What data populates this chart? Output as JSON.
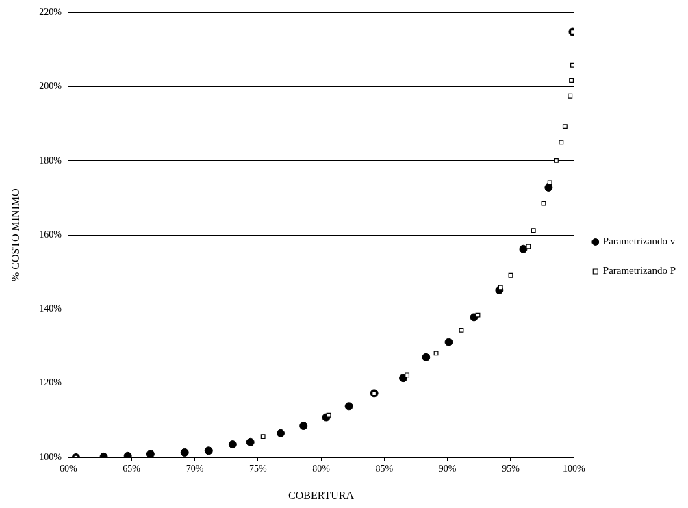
{
  "chart_data": {
    "type": "scatter",
    "xlabel": "COBERTURA",
    "ylabel": "% COSTO MINIMO",
    "xlim": [
      60,
      100
    ],
    "xticks": [
      {
        "value": 60,
        "label": "60%"
      },
      {
        "value": 65,
        "label": "65%"
      },
      {
        "value": 70,
        "label": "70%"
      },
      {
        "value": 75,
        "label": "75%"
      },
      {
        "value": 80,
        "label": "80%"
      },
      {
        "value": 85,
        "label": "85%"
      },
      {
        "value": 90,
        "label": "90%"
      },
      {
        "value": 95,
        "label": "95%"
      },
      {
        "value": 100,
        "label": "100%"
      }
    ],
    "ylim": [
      100,
      220
    ],
    "yticks": [
      {
        "value": 100,
        "label": "100%"
      },
      {
        "value": 120,
        "label": "120%"
      },
      {
        "value": 140,
        "label": "140%"
      },
      {
        "value": 160,
        "label": "160%"
      },
      {
        "value": 180,
        "label": "180%"
      },
      {
        "value": 200,
        "label": "200%"
      },
      {
        "value": 220,
        "label": "220%"
      }
    ],
    "grid": "y",
    "legend": "right",
    "series": [
      {
        "name": "Parametrizando v",
        "color": "#000000",
        "marker": "circle",
        "x": [
          60.6,
          62.8,
          64.7,
          66.5,
          69.2,
          71.1,
          73.0,
          74.4,
          76.8,
          78.6,
          80.4,
          82.2,
          84.2,
          86.5,
          88.3,
          90.1,
          92.1,
          94.1,
          96.0,
          98.0,
          99.9
        ],
        "values": [
          100,
          100.2,
          100.4,
          100.9,
          101.3,
          101.8,
          103.5,
          104.1,
          106.5,
          108.5,
          110.8,
          113.8,
          117.3,
          121.4,
          127.0,
          131.1,
          137.8,
          145.1,
          156.2,
          172.8,
          214.8
        ]
      },
      {
        "name": "Parametrizando P",
        "color": "#000000",
        "marker": "square",
        "x": [
          60.6,
          75.4,
          80.6,
          84.2,
          86.8,
          89.1,
          91.1,
          92.4,
          94.2,
          95.0,
          96.4,
          96.8,
          97.6,
          98.1,
          98.6,
          99.0,
          99.3,
          99.7,
          99.8,
          99.9,
          99.9
        ],
        "values": [
          100,
          105.6,
          111.4,
          117.2,
          122.2,
          128.1,
          134.3,
          138.4,
          145.8,
          149.1,
          156.9,
          161.2,
          168.5,
          174.1,
          180.1,
          185.0,
          189.3,
          197.5,
          201.7,
          205.8,
          214.8
        ]
      }
    ]
  }
}
